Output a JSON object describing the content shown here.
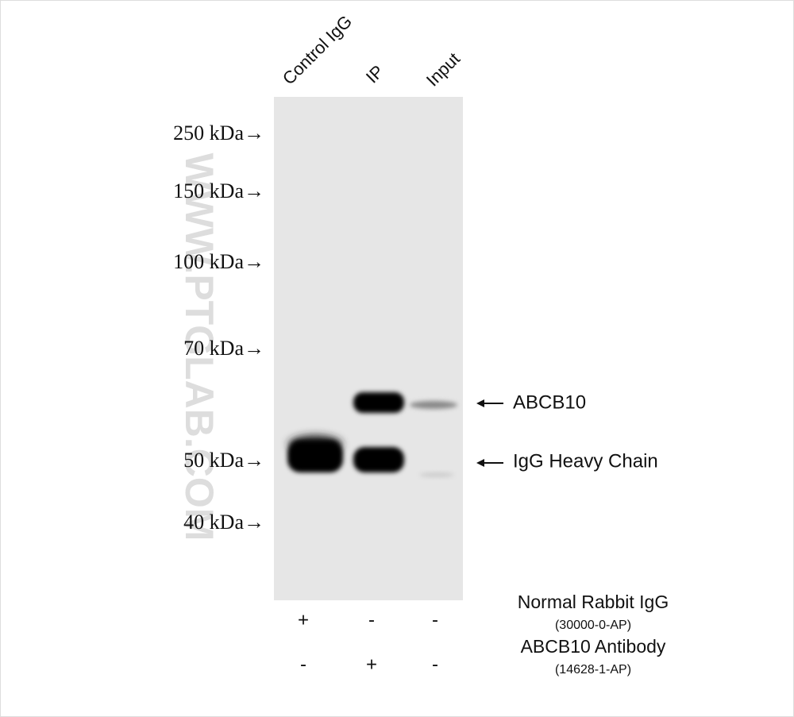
{
  "lanes": [
    "Control IgG",
    "IP",
    "Input"
  ],
  "markers": [
    "250 kDa→",
    "150 kDa→",
    "100 kDa→",
    "70 kDa→",
    "50 kDa→",
    "40 kDa→"
  ],
  "band_labels": [
    "ABCB10",
    "IgG Heavy Chain"
  ],
  "treatments": [
    {
      "name": "Normal Rabbit IgG",
      "catalog": "(30000-0-AP)",
      "signs": [
        "+",
        "-",
        "-"
      ]
    },
    {
      "name": "ABCB10 Antibody",
      "catalog": "(14628-1-AP)",
      "signs": [
        "-",
        "+",
        "-"
      ]
    }
  ],
  "watermark": "WWW.PTGLAB.COM"
}
